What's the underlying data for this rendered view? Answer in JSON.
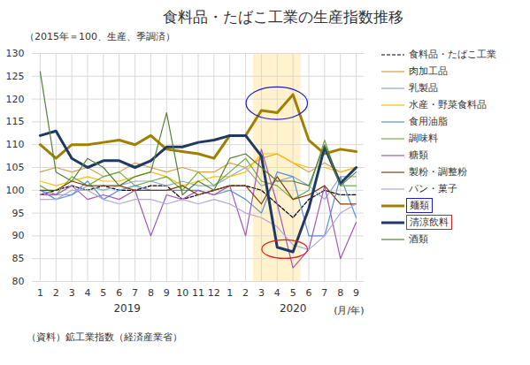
{
  "chart_data": {
    "type": "line",
    "title": "食料品・たばこ工業の生産指数推移",
    "subtitle": "（2015年＝100、生産、季調済）",
    "source": "（資料）鉱工業指数（経済産業省）",
    "x_unit_label": "(月/年)",
    "categories": [
      "1",
      "2",
      "3",
      "4",
      "5",
      "6",
      "7",
      "8",
      "9",
      "10",
      "11",
      "12",
      "1",
      "2",
      "3",
      "4",
      "5",
      "6",
      "7",
      "8",
      "9"
    ],
    "x_groups": [
      {
        "label": "2019",
        "count": 12
      },
      {
        "label": "2020",
        "count": 9
      }
    ],
    "ylim": [
      80,
      130
    ],
    "yticks": [
      80,
      85,
      90,
      95,
      100,
      105,
      110,
      115,
      120,
      125,
      130
    ],
    "grid": true,
    "legend": "right",
    "highlight": {
      "from_index": 14,
      "to_index": 16,
      "color": "#fff2cc"
    },
    "emphasis": [
      {
        "series": "麺類",
        "color": "#2020c8",
        "from_index": 14,
        "to_index": 16
      },
      {
        "series": "清涼飲料",
        "color": "#e02020",
        "from_index": 15,
        "to_index": 16
      }
    ],
    "series": [
      {
        "name": "食料品・たばこ工業",
        "color": "#000000",
        "line_style": "dashed",
        "values": [
          99,
          100,
          101,
          100,
          101,
          100,
          100,
          101,
          101,
          98,
          99,
          100,
          101,
          101,
          100,
          97,
          94,
          98,
          100,
          99,
          99
        ]
      },
      {
        "name": "肉加工品",
        "color": "#d6a24a",
        "values": [
          104,
          105,
          104,
          105,
          103,
          104,
          106,
          105,
          104,
          105,
          104,
          104,
          106,
          105,
          107,
          108,
          106,
          104,
          106,
          104,
          105
        ]
      },
      {
        "name": "乳製品",
        "color": "#8faacc",
        "values": [
          100,
          99,
          99,
          101,
          100,
          101,
          102,
          102,
          101,
          102,
          101,
          101,
          103,
          105,
          101,
          102,
          103,
          101,
          98,
          103,
          103
        ]
      },
      {
        "name": "水産・野菜食料品",
        "color": "#ffc000",
        "values": [
          102,
          101,
          102,
          103,
          102,
          102,
          103,
          104,
          103,
          101,
          102,
          103,
          103,
          104,
          108,
          108,
          106,
          105,
          105,
          104,
          105
        ]
      },
      {
        "name": "食用油脂",
        "color": "#5b8fd6",
        "values": [
          100,
          98,
          99,
          102,
          98,
          100,
          101,
          100,
          100,
          100,
          100,
          99,
          100,
          98,
          95,
          104,
          103,
          90,
          90,
          103,
          94
        ]
      },
      {
        "name": "調味料",
        "color": "#70ad47",
        "values": [
          101,
          99,
          103,
          101,
          103,
          104,
          101,
          102,
          103,
          100,
          104,
          101,
          104,
          107,
          102,
          101,
          98,
          100,
          111,
          101,
          101
        ]
      },
      {
        "name": "糖類",
        "color": "#a05ab4",
        "values": [
          99,
          99,
          101,
          98,
          99,
          98,
          100,
          90,
          99,
          98,
          100,
          99,
          101,
          90,
          109,
          97,
          83,
          87,
          101,
          85,
          93
        ]
      },
      {
        "name": "製粉・調整粉",
        "color": "#843c0c",
        "values": [
          100,
          100,
          102,
          101,
          101,
          101,
          100,
          100,
          100,
          101,
          99,
          100,
          101,
          101,
          97,
          103,
          98,
          99,
          101,
          97,
          97
        ]
      },
      {
        "name": "パン・菓子",
        "color": "#b4a7d6",
        "values": [
          98,
          98,
          100,
          100,
          98,
          97,
          98,
          98,
          97,
          98,
          97,
          98,
          97,
          95,
          94,
          92,
          88,
          87,
          90,
          95,
          97
        ]
      },
      {
        "name": "麺類",
        "color": "#a08000",
        "values": [
          110,
          107,
          110,
          110,
          110.5,
          111,
          110,
          112,
          109,
          108.5,
          108,
          107,
          112,
          112,
          117.5,
          117,
          121,
          111,
          108,
          109,
          108.5
        ]
      },
      {
        "name": "清涼飲料",
        "color": "#203864",
        "values": [
          112,
          113,
          107,
          105,
          106.5,
          106.5,
          105,
          106.5,
          109.5,
          109.5,
          110.5,
          111,
          112,
          112,
          107.5,
          87.5,
          86.5,
          96,
          109.5,
          101.5,
          105
        ]
      },
      {
        "name": "酒類",
        "color": "#548235",
        "values": [
          126,
          104,
          102,
          107,
          105,
          101,
          103,
          104,
          117,
          99,
          102,
          100,
          107,
          108,
          105,
          102,
          102,
          101,
          110,
          101,
          104
        ]
      }
    ]
  }
}
